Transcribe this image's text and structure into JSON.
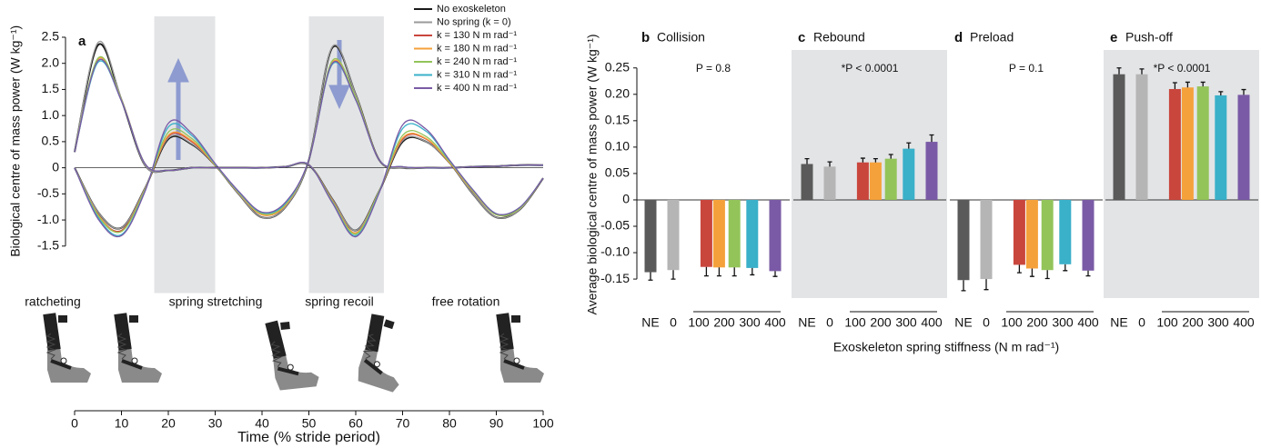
{
  "chart_data": [
    {
      "type": "line",
      "title": "a",
      "xlabel": "Time (% stride period)",
      "ylabel": "Biological centre of mass power (W kg⁻¹)",
      "x": [
        0,
        5,
        10,
        15,
        20,
        25,
        30,
        35,
        40,
        45,
        50,
        55,
        60,
        65,
        70,
        75,
        80,
        85,
        90,
        95,
        100
      ],
      "xlim": [
        0,
        100
      ],
      "xticks": [
        0,
        10,
        20,
        30,
        40,
        50,
        60,
        70,
        80,
        90,
        100
      ],
      "ylim": [
        -2.4,
        2.9
      ],
      "yticks": [
        -1.5,
        {
          "value": -1,
          "label": "-1.0"
        },
        -0.5,
        0,
        0.5,
        {
          "value": 1,
          "label": "1.0"
        },
        1.5,
        {
          "value": 2,
          "label": "2.0"
        },
        2.5
      ],
      "legend": "upper right",
      "shaded_x": [
        [
          17,
          30
        ],
        [
          50,
          66
        ]
      ],
      "phase_labels": [
        "ratcheting",
        "spring stretching",
        "spring recoil",
        "free rotation"
      ],
      "series": [
        {
          "name": "No exoskeleton",
          "color": "#1a1a1a",
          "values": [
            0,
            -0.85,
            -1.15,
            -0.4,
            0.55,
            0.45,
            0.05,
            -0.5,
            -0.95,
            -0.75,
            0.15,
            2.3,
            1.4,
            0.15,
            0,
            0,
            0,
            0.02,
            0.03,
            0.05,
            0.05
          ]
        },
        {
          "name": "No spring (k = 0)",
          "color": "#9a9a9a",
          "values": [
            0,
            -0.85,
            -1.15,
            -0.4,
            0.57,
            0.46,
            0.05,
            -0.5,
            -0.95,
            -0.75,
            0.15,
            2.32,
            1.4,
            0.15,
            0,
            0,
            0,
            0.02,
            0.03,
            0.05,
            0.05
          ]
        },
        {
          "name": "k = 130 N m rad⁻¹",
          "color": "#c9463d",
          "values": [
            0,
            -0.9,
            -1.2,
            -0.42,
            0.6,
            0.5,
            0.05,
            -0.48,
            -0.9,
            -0.72,
            0.15,
            2.0,
            1.35,
            0.15,
            0.02,
            0,
            0,
            0.02,
            0.03,
            0.05,
            0.05
          ]
        },
        {
          "name": "k = 180 N m rad⁻¹",
          "color": "#f5a13b",
          "values": [
            0,
            -0.9,
            -1.22,
            -0.42,
            0.62,
            0.52,
            0.05,
            -0.48,
            -0.9,
            -0.72,
            0.15,
            2.02,
            1.35,
            0.15,
            0.02,
            0,
            0,
            0.02,
            0.03,
            0.05,
            0.05
          ]
        },
        {
          "name": "k = 240 N m rad⁻¹",
          "color": "#93c45a",
          "values": [
            0,
            -0.92,
            -1.22,
            -0.43,
            0.68,
            0.56,
            0.06,
            -0.47,
            -0.88,
            -0.7,
            0.15,
            2.05,
            1.35,
            0.15,
            0.02,
            0,
            0,
            0.02,
            0.03,
            0.05,
            0.05
          ]
        },
        {
          "name": "k = 310 N m rad⁻¹",
          "color": "#3ab0c9",
          "values": [
            0,
            -0.95,
            -1.28,
            -0.45,
            0.78,
            0.62,
            0.07,
            -0.46,
            -0.86,
            -0.68,
            0.15,
            1.98,
            1.3,
            0.15,
            0.02,
            0,
            0,
            0.02,
            0.03,
            0.05,
            0.05
          ]
        },
        {
          "name": "k = 400 N m rad⁻¹",
          "color": "#7a5aa6",
          "values": [
            0,
            -0.98,
            -1.3,
            -0.46,
            0.85,
            0.66,
            0.08,
            -0.45,
            -0.85,
            -0.66,
            0.15,
            2.0,
            1.3,
            0.15,
            0.02,
            0,
            0,
            0.02,
            0.03,
            0.05,
            0.05
          ]
        },
        {
          "color": "#1a1a1a",
          "values": [
            0.3,
            2.35,
            1.3,
            0.05,
            -0.05,
            0,
            0,
            0,
            0,
            0.02,
            0.05,
            -0.6,
            -1.2,
            -0.45,
            0.5,
            0.5,
            0.1,
            -0.5,
            -0.95,
            -0.8,
            -0.2
          ]
        },
        {
          "color": "#9a9a9a",
          "values": [
            0.3,
            2.4,
            1.32,
            0.05,
            -0.05,
            0,
            0,
            0,
            0,
            0.02,
            0.05,
            -0.6,
            -1.2,
            -0.45,
            0.52,
            0.5,
            0.1,
            -0.5,
            -0.95,
            -0.8,
            -0.2
          ]
        },
        {
          "color": "#c9463d",
          "values": [
            0.3,
            2.05,
            1.3,
            0.08,
            -0.05,
            0,
            0,
            0,
            0,
            0.02,
            0.06,
            -0.62,
            -1.25,
            -0.45,
            0.55,
            0.55,
            0.1,
            -0.45,
            -0.9,
            -0.78,
            -0.2
          ]
        },
        {
          "color": "#f5a13b",
          "values": [
            0.3,
            2.08,
            1.3,
            0.08,
            -0.05,
            0,
            0,
            0,
            0,
            0.02,
            0.06,
            -0.63,
            -1.25,
            -0.45,
            0.57,
            0.56,
            0.1,
            -0.45,
            -0.9,
            -0.78,
            -0.2
          ]
        },
        {
          "color": "#93c45a",
          "values": [
            0.3,
            2.1,
            1.3,
            0.08,
            -0.05,
            0,
            0,
            0,
            0,
            0.02,
            0.06,
            -0.64,
            -1.27,
            -0.45,
            0.62,
            0.6,
            0.12,
            -0.44,
            -0.9,
            -0.78,
            -0.2
          ]
        },
        {
          "color": "#3ab0c9",
          "values": [
            0.3,
            2.02,
            1.28,
            0.08,
            -0.05,
            0,
            0,
            0,
            0,
            0.02,
            0.06,
            -0.66,
            -1.3,
            -0.47,
            0.75,
            0.7,
            0.14,
            -0.42,
            -0.88,
            -0.76,
            -0.2
          ]
        },
        {
          "color": "#7a5aa6",
          "values": [
            0.3,
            2.05,
            1.28,
            0.08,
            -0.05,
            0,
            0,
            0,
            0,
            0.02,
            0.06,
            -0.67,
            -1.32,
            -0.48,
            0.82,
            0.74,
            0.15,
            -0.42,
            -0.88,
            -0.76,
            -0.2
          ]
        }
      ]
    },
    {
      "type": "bar",
      "title": "b",
      "subtitle": "Collision",
      "annotation": "P = 0.8",
      "shaded": false,
      "categories": [
        "NE",
        "0"
      ],
      "category_values": [
        -0.137,
        -0.133
      ],
      "category_errors": [
        0.015,
        0.017
      ],
      "category_colors": [
        "#5a5a5a",
        "#b5b5b5"
      ],
      "x": [
        130,
        180,
        240,
        310,
        400
      ],
      "values": [
        -0.127,
        -0.128,
        -0.128,
        -0.129,
        -0.135
      ],
      "errors": [
        0.017,
        0.016,
        0.016,
        0.013,
        0.01
      ],
      "colors": [
        "#c9463d",
        "#f5a13b",
        "#93c45a",
        "#3ab0c9",
        "#7a5aa6"
      ],
      "xlim": [
        100,
        400
      ],
      "xticks": [
        100,
        200,
        300,
        400
      ]
    },
    {
      "type": "bar",
      "title": "c",
      "subtitle": "Rebound",
      "annotation": "*P < 0.0001",
      "shaded": true,
      "categories": [
        "NE",
        "0"
      ],
      "category_values": [
        0.068,
        0.063
      ],
      "category_errors": [
        0.01,
        0.009
      ],
      "category_colors": [
        "#5a5a5a",
        "#b5b5b5"
      ],
      "x": [
        130,
        180,
        240,
        310,
        400
      ],
      "values": [
        0.071,
        0.071,
        0.078,
        0.097,
        0.11
      ],
      "errors": [
        0.008,
        0.007,
        0.008,
        0.011,
        0.013
      ],
      "colors": [
        "#c9463d",
        "#f5a13b",
        "#93c45a",
        "#3ab0c9",
        "#7a5aa6"
      ],
      "xlim": [
        100,
        400
      ],
      "xticks": [
        100,
        200,
        300,
        400
      ]
    },
    {
      "type": "bar",
      "title": "d",
      "subtitle": "Preload",
      "annotation": "P = 0.1",
      "shaded": false,
      "categories": [
        "NE",
        "0"
      ],
      "category_values": [
        -0.152,
        -0.15
      ],
      "category_errors": [
        0.02,
        0.02
      ],
      "category_colors": [
        "#5a5a5a",
        "#b5b5b5"
      ],
      "x": [
        130,
        180,
        240,
        310,
        400
      ],
      "values": [
        -0.123,
        -0.13,
        -0.133,
        -0.122,
        -0.134
      ],
      "errors": [
        0.015,
        0.015,
        0.016,
        0.012,
        0.01
      ],
      "colors": [
        "#c9463d",
        "#f5a13b",
        "#93c45a",
        "#3ab0c9",
        "#7a5aa6"
      ],
      "xlim": [
        100,
        400
      ],
      "xticks": [
        100,
        200,
        300,
        400
      ]
    },
    {
      "type": "bar",
      "title": "e",
      "subtitle": "Push-off",
      "annotation": "*P < 0.0001",
      "shaded": true,
      "categories": [
        "NE",
        "0"
      ],
      "category_values": [
        0.238,
        0.238
      ],
      "category_errors": [
        0.012,
        0.01
      ],
      "category_colors": [
        "#5a5a5a",
        "#b5b5b5"
      ],
      "x": [
        130,
        180,
        240,
        310,
        400
      ],
      "values": [
        0.21,
        0.213,
        0.215,
        0.198,
        0.199
      ],
      "errors": [
        0.012,
        0.01,
        0.008,
        0.007,
        0.01
      ],
      "colors": [
        "#c9463d",
        "#f5a13b",
        "#93c45a",
        "#3ab0c9",
        "#7a5aa6"
      ],
      "xlim": [
        100,
        400
      ],
      "xticks": [
        100,
        200,
        300,
        400
      ]
    }
  ],
  "bar_axes": {
    "ylabel": "Average biological centre of mass power (W kg⁻¹)",
    "xlabel": "Exoskeleton spring stiffness (N m rad⁻¹)",
    "ylim": [
      -0.186,
      0.284
    ],
    "yticks": [
      -0.15,
      {
        "value": -0.1,
        "label": "-0.10"
      },
      -0.05,
      0,
      0.05,
      {
        "value": 0.1,
        "label": "0.10"
      },
      0.15,
      {
        "value": 0.2,
        "label": "0.20"
      },
      0.25
    ]
  }
}
